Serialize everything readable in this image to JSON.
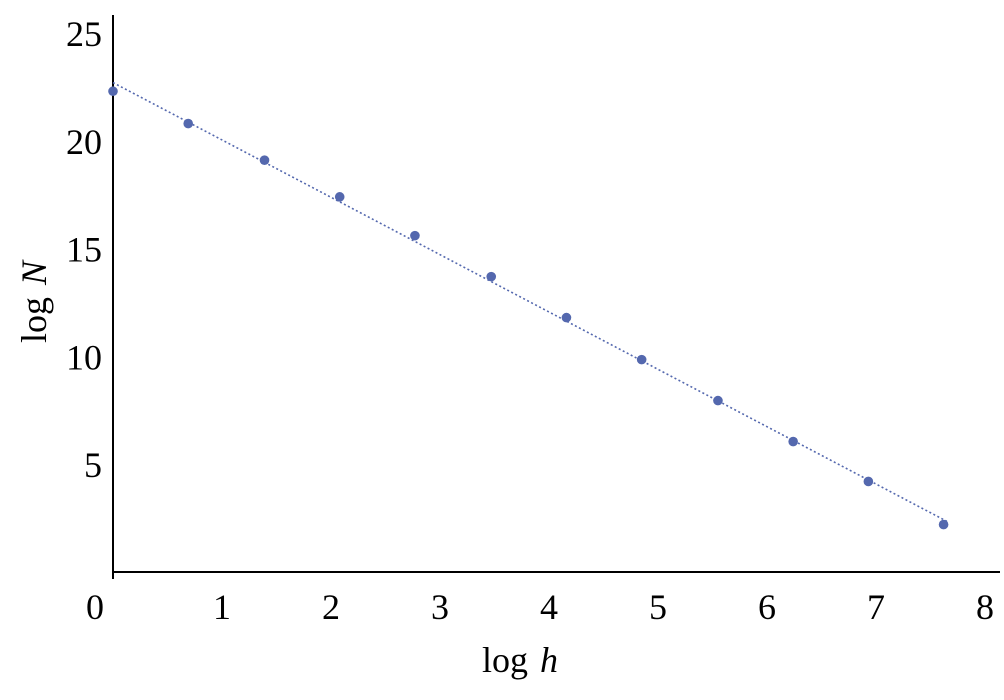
{
  "chart_data": {
    "type": "scatter",
    "title": "",
    "xlabel": {
      "text": "log",
      "var": "h"
    },
    "ylabel": {
      "text": "log",
      "var": "N"
    },
    "xlim": [
      0,
      8
    ],
    "ylim": [
      0,
      25
    ],
    "x_ticks": [
      "0",
      "1",
      "2",
      "3",
      "4",
      "5",
      "6",
      "7",
      "8"
    ],
    "y_ticks": [
      "5",
      "10",
      "15",
      "20",
      "25"
    ],
    "grid": false,
    "legend": "none",
    "point_color": "#5468ae",
    "trendline": {
      "style": "dotted",
      "color": "#5468ae",
      "slope": -2.66,
      "intercept": 22.7,
      "x_range": [
        0,
        7.65
      ]
    },
    "series": [
      {
        "x": [
          0.0,
          0.69,
          1.39,
          2.08,
          2.77,
          3.47,
          4.16,
          4.85,
          5.55,
          6.24,
          6.93,
          7.62
        ],
        "y": [
          22.3,
          20.8,
          19.1,
          17.4,
          15.6,
          13.7,
          11.8,
          9.85,
          7.95,
          6.05,
          4.2,
          2.2
        ]
      }
    ]
  }
}
